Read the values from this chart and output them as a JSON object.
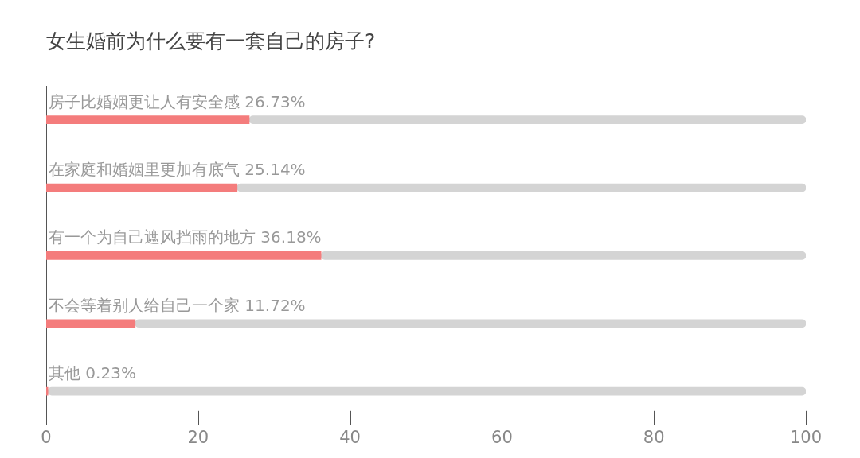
{
  "chart_data": {
    "type": "bar",
    "orientation": "horizontal",
    "stacked": true,
    "title": "女生婚前为什么要有一套自己的房子?",
    "categories": [
      "房子比婚姻更让人有安全感",
      "在家庭和婚姻里更加有底气",
      "有一个为自己遮风挡雨的地方",
      "不会等着别人给自己一个家",
      "其他"
    ],
    "series": [
      {
        "color": "#f47c7c",
        "values": [
          26.73,
          25.14,
          36.18,
          11.72,
          0.23
        ],
        "value_labels": [
          "26.73%",
          "25.14%",
          "36.18%",
          "11.72%",
          "0.23%"
        ]
      },
      {
        "color": "#d4d4d4",
        "values": [
          73.27,
          74.86,
          63.82,
          88.28,
          99.77
        ]
      }
    ],
    "xlim": [
      0,
      100
    ],
    "xticks": [
      0,
      20,
      40,
      60,
      80,
      100
    ],
    "grid": false,
    "legend": false
  }
}
